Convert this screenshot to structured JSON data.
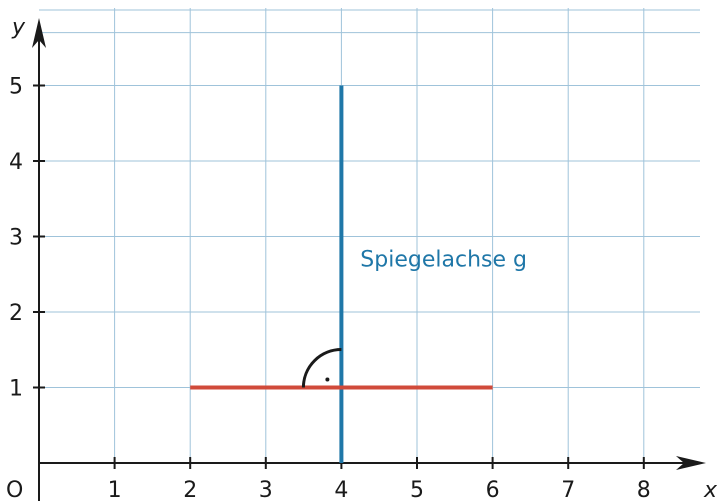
{
  "chart_data": {
    "type": "diagram",
    "xlabel": "x",
    "ylabel": "y",
    "origin_label": "O",
    "x_ticks": [
      "1",
      "2",
      "3",
      "4",
      "5",
      "6",
      "7",
      "8"
    ],
    "y_ticks": [
      "1",
      "2",
      "3",
      "4",
      "5"
    ],
    "xlim": [
      0,
      8.7
    ],
    "ylim": [
      0,
      5.8
    ],
    "grid": true,
    "segments": [
      {
        "name": "mirror-axis",
        "x": [
          4,
          4
        ],
        "y": [
          0,
          5
        ],
        "color": "#1f77a8"
      },
      {
        "name": "red-segment",
        "x": [
          2,
          6
        ],
        "y": [
          1,
          1
        ],
        "color": "#d04a3a"
      }
    ],
    "right_angle_marker": {
      "at": [
        4,
        1
      ]
    },
    "annotations": [
      {
        "text": "Spiegelachse g",
        "anchor": [
          4.25,
          2.6
        ],
        "color": "#1f77a8"
      }
    ]
  },
  "colors": {
    "grid": "#9fc3da",
    "axis": "#1a1a1a"
  }
}
